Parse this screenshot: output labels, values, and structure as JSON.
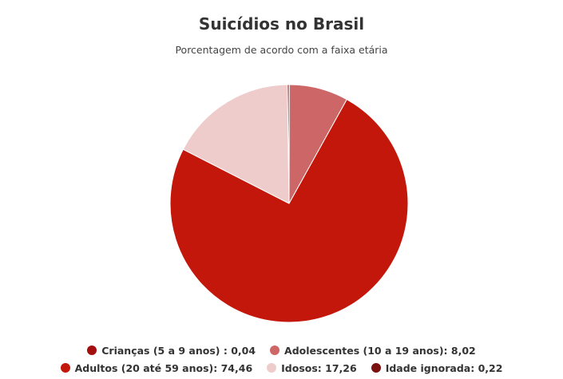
{
  "chart_data": {
    "type": "pie",
    "title": "Suicídios no Brasil",
    "subtitle": "Porcentagem de acordo com a faixa etária",
    "legend_position": "bottom",
    "slices": [
      {
        "label": "Crianças (5 a 9 anos) : 0,04",
        "value": 0.04,
        "color": "#a30f0f"
      },
      {
        "label": "Adolescentes (10 a 19 anos): 8,02",
        "value": 8.02,
        "color": "#cd6666"
      },
      {
        "label": "Adultos (20 até 59 anos): 74,46",
        "value": 74.46,
        "color": "#c4170c"
      },
      {
        "label": "Idosos: 17,26",
        "value": 17.26,
        "color": "#eecccc"
      },
      {
        "label": "Idade ignorada: 0,22",
        "value": 0.22,
        "color": "#7a1010"
      }
    ]
  }
}
